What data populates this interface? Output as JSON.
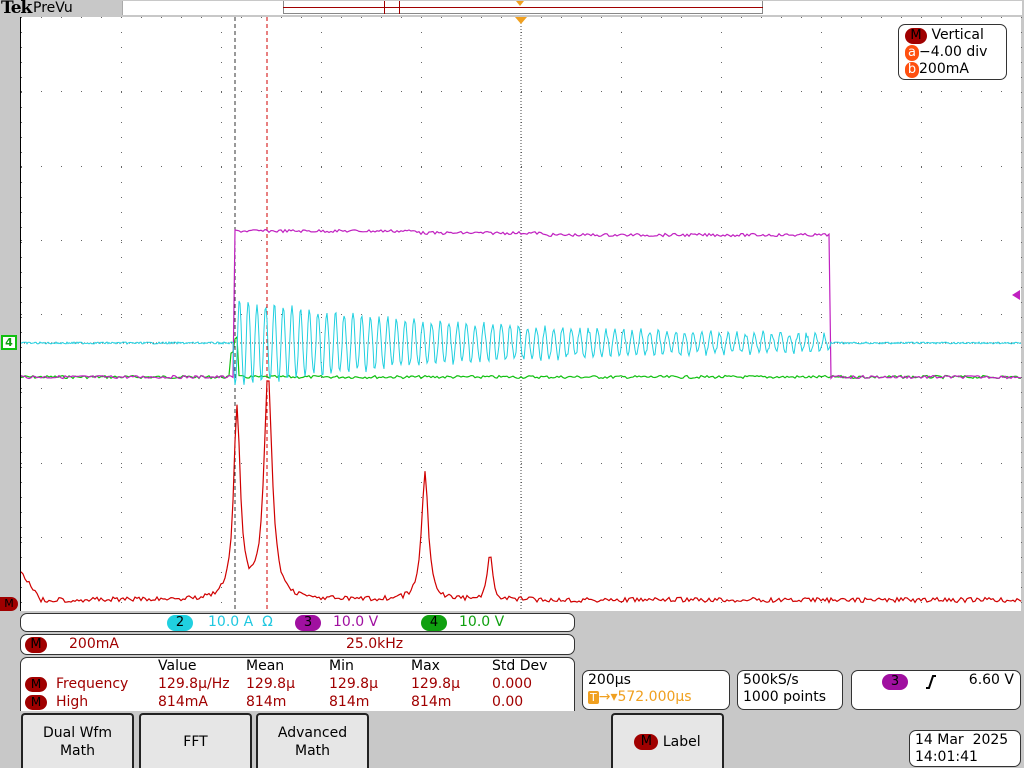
{
  "header": {
    "brand": "Tek",
    "mode": "PreVu"
  },
  "colors": {
    "ch2": "#20d0e0",
    "ch3": "#c020c0",
    "ch4": "#10c010",
    "math": "#d00000",
    "trigger": "#f0a020"
  },
  "vertical_box": {
    "title": "Vertical",
    "badge": "M",
    "a_label": "a",
    "a_value": "−4.00 div",
    "b_label": "b",
    "b_value": "200mA"
  },
  "markers": {
    "ch4": "4",
    "math": "M"
  },
  "channels": [
    {
      "num": "2",
      "scale": "10.0 A",
      "extra": "Ω"
    },
    {
      "num": "3",
      "scale": "10.0 V"
    },
    {
      "num": "4",
      "scale": "10.0 V"
    }
  ],
  "math_bar": {
    "badge": "M",
    "scale": "200mA",
    "freq": "25.0kHz"
  },
  "measurements": {
    "headers": [
      "Value",
      "Mean",
      "Min",
      "Max",
      "Std Dev"
    ],
    "rows": [
      {
        "badge": "M",
        "name": "Frequency",
        "values": [
          "129.8μ/Hz",
          "129.8μ",
          "129.8μ",
          "129.8μ",
          "0.000"
        ]
      },
      {
        "badge": "M",
        "name": "High",
        "values": [
          "814mA",
          "814m",
          "814m",
          "814m",
          "0.00"
        ]
      }
    ]
  },
  "timebase": {
    "scale": "200μs",
    "trigger_icon": "T",
    "position": "→▾572.000μs"
  },
  "acquisition": {
    "rate": "500kS/s",
    "points": "1000 points"
  },
  "trigger": {
    "source": "3",
    "slope": "rising-edge-icon",
    "level": "6.60 V"
  },
  "buttons": {
    "dual": "Dual Wfm\nMath",
    "fft": "FFT",
    "advanced": "Advanced\nMath",
    "label_badge": "M",
    "label": "Label"
  },
  "datetime": {
    "date": "14 Mar  2025",
    "time": "14:01:41"
  }
}
